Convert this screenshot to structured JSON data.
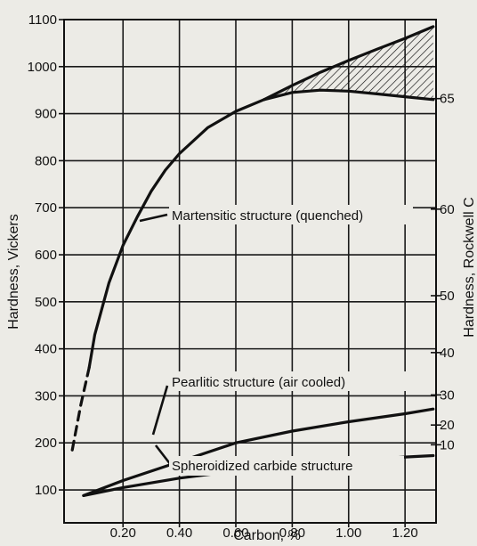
{
  "chart_data": {
    "type": "line",
    "xlabel": "Carbon, %",
    "ylabel_left": "Hardness, Vickers",
    "ylabel_right": "Hardness, Rockwell C",
    "xlim": [
      0,
      1.3
    ],
    "ylim": [
      0,
      1100
    ],
    "grid": true,
    "x_ticks": [
      "0.20",
      "0.40",
      "0.60",
      "0.80",
      "1.00",
      "1.20"
    ],
    "x_tick_values": [
      0.2,
      0.4,
      0.6,
      0.8,
      1.0,
      1.2
    ],
    "y_ticks": [
      "100",
      "200",
      "300",
      "400",
      "500",
      "600",
      "700",
      "800",
      "900",
      "1000",
      "1100"
    ],
    "y_tick_values": [
      100,
      200,
      300,
      400,
      500,
      600,
      700,
      800,
      900,
      1000,
      1100
    ],
    "rockwell_ticks": [
      {
        "label": "65",
        "hv": 932
      },
      {
        "label": "60",
        "hv": 697
      },
      {
        "label": "50",
        "hv": 513
      },
      {
        "label": "40",
        "hv": 392
      },
      {
        "label": "30",
        "hv": 302
      },
      {
        "label": "20",
        "hv": 238
      },
      {
        "label": "10",
        "hv": 196
      }
    ],
    "series": [
      {
        "name": "Martensitic structure (quenched)",
        "dashed_segment": {
          "x": [
            0.02,
            0.05,
            0.08
          ],
          "y": [
            185,
            280,
            360
          ]
        },
        "x": [
          0.08,
          0.1,
          0.15,
          0.2,
          0.25,
          0.3,
          0.35,
          0.4,
          0.5,
          0.6,
          0.7
        ],
        "y": [
          360,
          430,
          540,
          620,
          680,
          735,
          780,
          815,
          870,
          905,
          930
        ],
        "upper_branch": {
          "x": [
            0.7,
            0.8,
            0.9,
            1.0,
            1.1,
            1.2,
            1.3
          ],
          "y": [
            930,
            960,
            988,
            1013,
            1037,
            1060,
            1085
          ]
        },
        "lower_branch": {
          "x": [
            0.7,
            0.8,
            0.9,
            1.0,
            1.1,
            1.2,
            1.3
          ],
          "y": [
            930,
            945,
            950,
            948,
            942,
            936,
            930
          ]
        }
      },
      {
        "name": "Pearlitic structure (air cooled)",
        "x": [
          0.06,
          0.2,
          0.4,
          0.6,
          0.8,
          1.0,
          1.2,
          1.3
        ],
        "y": [
          88,
          120,
          160,
          200,
          225,
          245,
          262,
          272
        ]
      },
      {
        "name": "Spheroidized carbide structure",
        "x": [
          0.06,
          0.2,
          0.4,
          0.6,
          0.8,
          1.0,
          1.2,
          1.3
        ],
        "y": [
          88,
          105,
          125,
          140,
          152,
          162,
          170,
          173
        ]
      }
    ],
    "annotations": [
      "Martensitic structure (quenched)",
      "Pearlitic structure (air cooled)",
      "Spheroidized carbide structure"
    ]
  }
}
